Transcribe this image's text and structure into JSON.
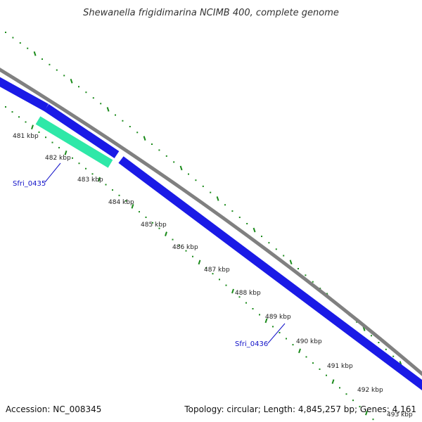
{
  "title": "Shewanella frigidimarina NCIMB 400, complete genome",
  "footer": {
    "accession": "Accession: NC_008345",
    "summary": "Topology: circular; Length: 4,845,257 bp; Genes: 4,161"
  },
  "colors": {
    "background": "#ffffff",
    "backbone": "#808080",
    "gene_forward": "#1a1ae6",
    "gene_highlight": "#2ee8a8",
    "tick": "#1a8a1a",
    "gene_label": "#1010c8"
  },
  "scale": {
    "unit": "kbp",
    "labels": [
      "481 kbp",
      "482 kbp",
      "483 kbp",
      "484 kbp",
      "485 kbp",
      "486 kbp",
      "487 kbp",
      "488 kbp",
      "489 kbp",
      "490 kbp",
      "491 kbp",
      "492 kbp",
      "493 kbp"
    ]
  },
  "genes": [
    {
      "name": "Sfri_0435",
      "start_kbp": 481.6,
      "end_kbp": 482.9,
      "strand": "+",
      "track": "inner",
      "highlighted": true
    },
    {
      "name": "Sfri_0436",
      "start_kbp": 483.0,
      "end_kbp": 494.0,
      "strand": "+",
      "track": "outer",
      "highlighted": false
    }
  ]
}
